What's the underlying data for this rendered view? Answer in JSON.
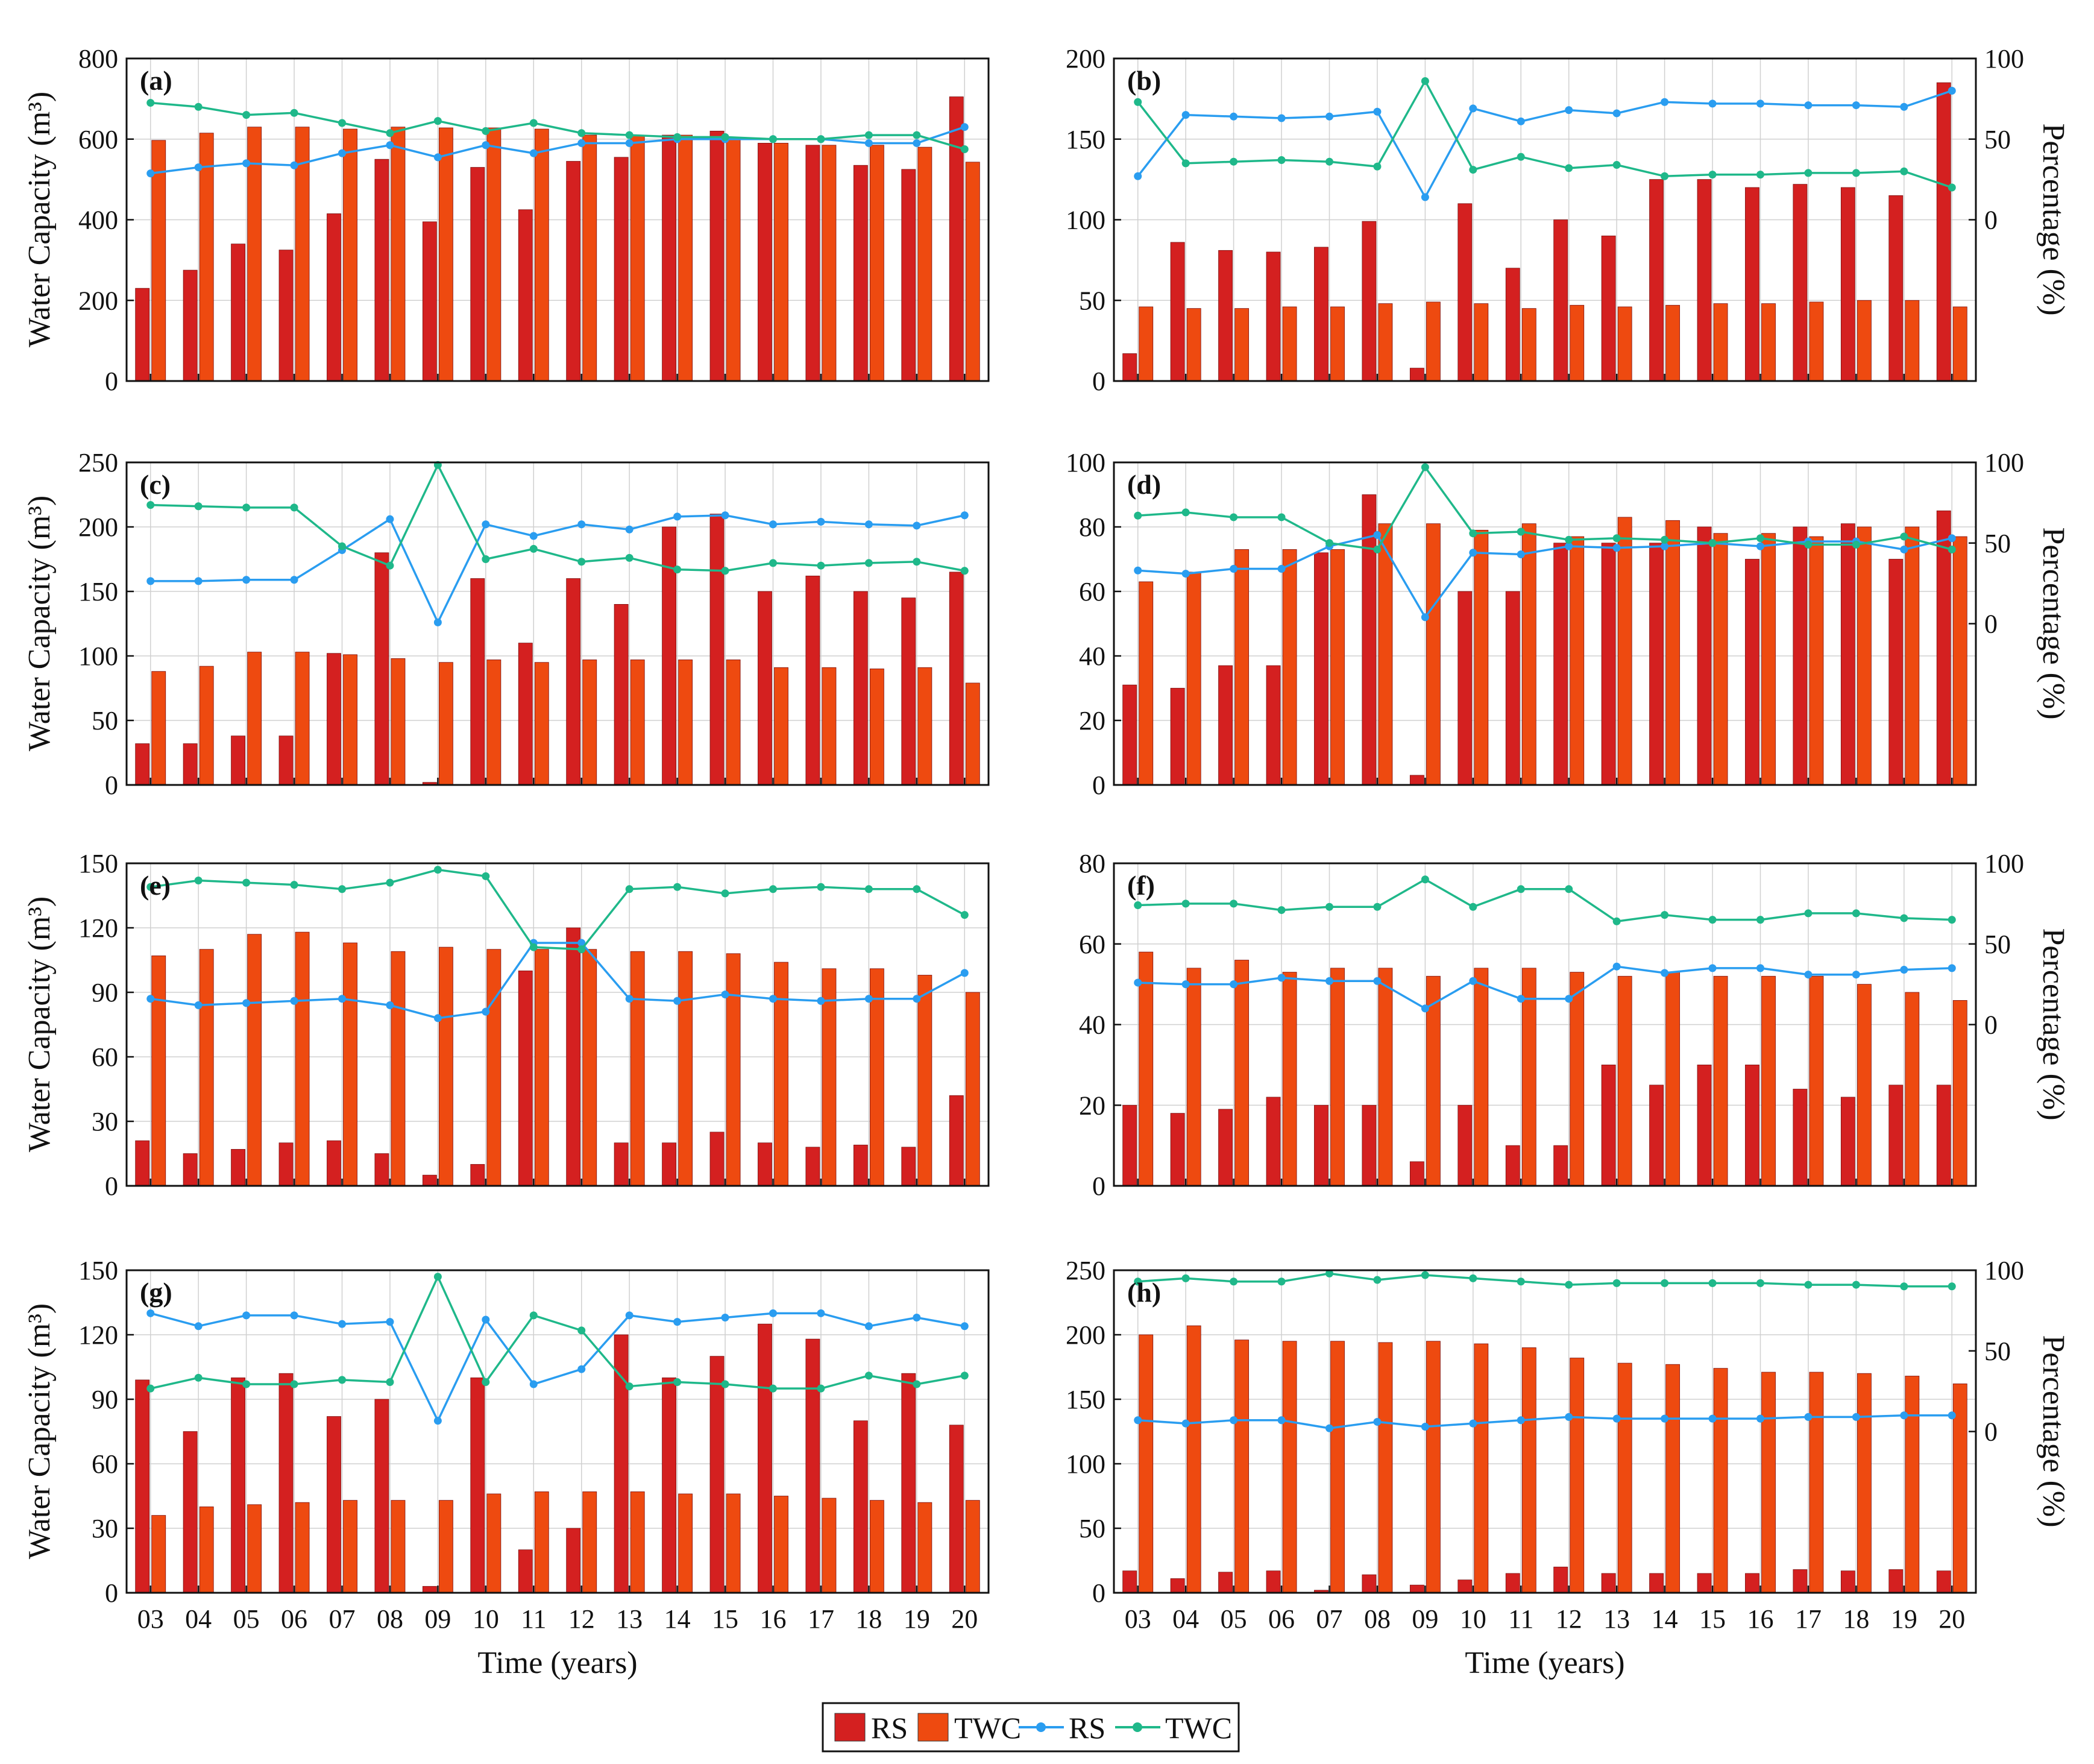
{
  "colors": {
    "rs_bar": "#d42020",
    "twc_bar": "#ee4a10",
    "rs_line": "#2a9df0",
    "twc_line": "#1fb88a",
    "grid": "#d0d0d0",
    "axis": "#111111"
  },
  "shared": {
    "xlabel": "Time (years)",
    "ylabel_left": "Water Capacity (m³)",
    "ylabel_right": "Percentage (%)",
    "x_ticks": [
      "03",
      "04",
      "05",
      "06",
      "07",
      "08",
      "09",
      "10",
      "11",
      "12",
      "13",
      "14",
      "15",
      "16",
      "17",
      "18",
      "19",
      "20"
    ]
  },
  "legend": {
    "items": [
      {
        "label": "RS",
        "kind": "bar",
        "color": "#d42020"
      },
      {
        "label": "TWC",
        "kind": "bar",
        "color": "#ee4a10"
      },
      {
        "label": "RS",
        "kind": "line",
        "color": "#2a9df0"
      },
      {
        "label": "TWC",
        "kind": "line",
        "color": "#1fb88a"
      }
    ]
  },
  "chart_data": [
    {
      "panel": "(a)",
      "type": "bar",
      "categories": [
        "03",
        "04",
        "05",
        "06",
        "07",
        "08",
        "09",
        "10",
        "11",
        "12",
        "13",
        "14",
        "15",
        "16",
        "17",
        "18",
        "19",
        "20"
      ],
      "ylim": [
        0,
        800
      ],
      "yticks": [
        0,
        200,
        400,
        600,
        800
      ],
      "right_axis": false,
      "series": [
        {
          "name": "RS",
          "kind": "bar",
          "values": [
            230,
            275,
            340,
            325,
            415,
            550,
            395,
            530,
            425,
            545,
            555,
            610,
            620,
            590,
            585,
            535,
            525,
            705
          ]
        },
        {
          "name": "TWC",
          "kind": "bar",
          "values": [
            597,
            615,
            630,
            630,
            625,
            630,
            628,
            628,
            625,
            610,
            610,
            610,
            605,
            590,
            585,
            585,
            580,
            543
          ]
        },
        {
          "name": "RS",
          "kind": "line",
          "values": [
            515,
            530,
            540,
            535,
            565,
            585,
            555,
            585,
            565,
            590,
            590,
            600,
            600,
            600,
            600,
            590,
            590,
            630
          ]
        },
        {
          "name": "TWC",
          "kind": "line",
          "values": [
            690,
            680,
            660,
            665,
            640,
            615,
            645,
            620,
            640,
            615,
            610,
            605,
            605,
            600,
            600,
            610,
            610,
            575
          ]
        }
      ]
    },
    {
      "panel": "(b)",
      "type": "bar",
      "categories": [
        "03",
        "04",
        "05",
        "06",
        "07",
        "08",
        "09",
        "10",
        "11",
        "12",
        "13",
        "14",
        "15",
        "16",
        "17",
        "18",
        "19",
        "20"
      ],
      "ylim": [
        0,
        200
      ],
      "yticks": [
        0,
        50,
        100,
        150,
        200
      ],
      "right_axis": true,
      "right_ylim": [
        -100,
        100
      ],
      "right_yticks": [
        0,
        50,
        100
      ],
      "series": [
        {
          "name": "RS",
          "kind": "bar",
          "values": [
            17,
            86,
            81,
            80,
            83,
            99,
            8,
            110,
            70,
            100,
            90,
            125,
            125,
            120,
            122,
            120,
            115,
            185
          ]
        },
        {
          "name": "TWC",
          "kind": "bar",
          "values": [
            46,
            45,
            45,
            46,
            46,
            48,
            49,
            48,
            45,
            47,
            46,
            47,
            48,
            48,
            49,
            50,
            50,
            46
          ]
        },
        {
          "name": "RS",
          "kind": "line",
          "values": [
            27,
            65,
            64,
            63,
            64,
            67,
            14,
            69,
            61,
            68,
            66,
            73,
            72,
            72,
            71,
            71,
            70,
            80
          ]
        },
        {
          "name": "TWC",
          "kind": "line",
          "values": [
            73,
            35,
            36,
            37,
            36,
            33,
            86,
            31,
            39,
            32,
            34,
            27,
            28,
            28,
            29,
            29,
            30,
            20
          ]
        }
      ]
    },
    {
      "panel": "(c)",
      "type": "bar",
      "categories": [
        "03",
        "04",
        "05",
        "06",
        "07",
        "08",
        "09",
        "10",
        "11",
        "12",
        "13",
        "14",
        "15",
        "16",
        "17",
        "18",
        "19",
        "20"
      ],
      "ylim": [
        0,
        250
      ],
      "yticks": [
        0,
        50,
        100,
        150,
        200,
        250
      ],
      "right_axis": false,
      "series": [
        {
          "name": "RS",
          "kind": "bar",
          "values": [
            32,
            32,
            38,
            38,
            102,
            180,
            2,
            160,
            110,
            160,
            140,
            200,
            210,
            150,
            162,
            150,
            145,
            165
          ]
        },
        {
          "name": "TWC",
          "kind": "bar",
          "values": [
            88,
            92,
            103,
            103,
            101,
            98,
            95,
            97,
            95,
            97,
            97,
            97,
            97,
            91,
            91,
            90,
            91,
            79
          ]
        },
        {
          "name": "RS",
          "kind": "line",
          "values": [
            158,
            158,
            159,
            159,
            182,
            206,
            126,
            202,
            193,
            202,
            198,
            208,
            209,
            202,
            204,
            202,
            201,
            209
          ]
        },
        {
          "name": "TWC",
          "kind": "line",
          "values": [
            217,
            216,
            215,
            215,
            185,
            170,
            248,
            175,
            183,
            173,
            176,
            167,
            166,
            172,
            170,
            172,
            173,
            166
          ]
        }
      ]
    },
    {
      "panel": "(d)",
      "type": "bar",
      "categories": [
        "03",
        "04",
        "05",
        "06",
        "07",
        "08",
        "09",
        "10",
        "11",
        "12",
        "13",
        "14",
        "15",
        "16",
        "17",
        "18",
        "19",
        "20"
      ],
      "ylim": [
        0,
        100
      ],
      "yticks": [
        0,
        20,
        40,
        60,
        80,
        100
      ],
      "right_axis": true,
      "right_ylim": [
        -100,
        100
      ],
      "right_yticks": [
        0,
        50,
        100
      ],
      "series": [
        {
          "name": "RS",
          "kind": "bar",
          "values": [
            31,
            30,
            37,
            37,
            72,
            90,
            3,
            60,
            60,
            75,
            75,
            75,
            80,
            70,
            80,
            81,
            70,
            85
          ]
        },
        {
          "name": "TWC",
          "kind": "bar",
          "values": [
            63,
            66,
            73,
            73,
            73,
            81,
            81,
            79,
            81,
            77,
            83,
            82,
            78,
            78,
            77,
            80,
            80,
            77
          ]
        },
        {
          "name": "RS",
          "kind": "line",
          "values": [
            33,
            31,
            34,
            34,
            48,
            55,
            4,
            44,
            43,
            48,
            47,
            48,
            50,
            48,
            51,
            51,
            46,
            53
          ]
        },
        {
          "name": "TWC",
          "kind": "line",
          "values": [
            67,
            69,
            66,
            66,
            50,
            46,
            97,
            56,
            57,
            52,
            53,
            52,
            50,
            53,
            49,
            49,
            54,
            46
          ]
        }
      ]
    },
    {
      "panel": "(e)",
      "type": "bar",
      "categories": [
        "03",
        "04",
        "05",
        "06",
        "07",
        "08",
        "09",
        "10",
        "11",
        "12",
        "13",
        "14",
        "15",
        "16",
        "17",
        "18",
        "19",
        "20"
      ],
      "ylim": [
        0,
        150
      ],
      "yticks": [
        0,
        30,
        60,
        90,
        120,
        150
      ],
      "right_axis": false,
      "series": [
        {
          "name": "RS",
          "kind": "bar",
          "values": [
            21,
            15,
            17,
            20,
            21,
            15,
            5,
            10,
            100,
            120,
            20,
            20,
            25,
            20,
            18,
            19,
            18,
            42
          ]
        },
        {
          "name": "TWC",
          "kind": "bar",
          "values": [
            107,
            110,
            117,
            118,
            113,
            109,
            111,
            110,
            110,
            110,
            109,
            109,
            108,
            104,
            101,
            101,
            98,
            90
          ]
        },
        {
          "name": "RS",
          "kind": "line",
          "values": [
            87,
            84,
            85,
            86,
            87,
            84,
            78,
            81,
            113,
            113,
            87,
            86,
            89,
            87,
            86,
            87,
            87,
            99
          ]
        },
        {
          "name": "TWC",
          "kind": "line",
          "values": [
            139,
            142,
            141,
            140,
            138,
            141,
            147,
            144,
            111,
            110,
            138,
            139,
            136,
            138,
            139,
            138,
            138,
            126
          ]
        }
      ]
    },
    {
      "panel": "(f)",
      "type": "bar",
      "categories": [
        "03",
        "04",
        "05",
        "06",
        "07",
        "08",
        "09",
        "10",
        "11",
        "12",
        "13",
        "14",
        "15",
        "16",
        "17",
        "18",
        "19",
        "20"
      ],
      "ylim": [
        0,
        80
      ],
      "yticks": [
        0,
        20,
        40,
        60,
        80
      ],
      "right_axis": true,
      "right_ylim": [
        -100,
        100
      ],
      "right_yticks": [
        0,
        50,
        100
      ],
      "series": [
        {
          "name": "RS",
          "kind": "bar",
          "values": [
            20,
            18,
            19,
            22,
            20,
            20,
            6,
            20,
            10,
            10,
            30,
            25,
            30,
            30,
            24,
            22,
            25,
            25
          ]
        },
        {
          "name": "TWC",
          "kind": "bar",
          "values": [
            58,
            54,
            56,
            53,
            54,
            54,
            52,
            54,
            54,
            53,
            52,
            53,
            52,
            52,
            52,
            50,
            48,
            46
          ]
        },
        {
          "name": "RS",
          "kind": "line",
          "values": [
            26,
            25,
            25,
            29,
            27,
            27,
            10,
            27,
            16,
            16,
            36,
            32,
            35,
            35,
            31,
            31,
            34,
            35
          ]
        },
        {
          "name": "TWC",
          "kind": "line",
          "values": [
            74,
            75,
            75,
            71,
            73,
            73,
            90,
            73,
            84,
            84,
            64,
            68,
            65,
            65,
            69,
            69,
            66,
            65
          ]
        }
      ]
    },
    {
      "panel": "(g)",
      "type": "bar",
      "categories": [
        "03",
        "04",
        "05",
        "06",
        "07",
        "08",
        "09",
        "10",
        "11",
        "12",
        "13",
        "14",
        "15",
        "16",
        "17",
        "18",
        "19",
        "20"
      ],
      "ylim": [
        0,
        150
      ],
      "yticks": [
        0,
        30,
        60,
        90,
        120,
        150
      ],
      "right_axis": false,
      "series": [
        {
          "name": "RS",
          "kind": "bar",
          "values": [
            99,
            75,
            100,
            102,
            82,
            90,
            3,
            100,
            20,
            30,
            120,
            100,
            110,
            125,
            118,
            80,
            102,
            78
          ]
        },
        {
          "name": "TWC",
          "kind": "bar",
          "values": [
            36,
            40,
            41,
            42,
            43,
            43,
            43,
            46,
            47,
            47,
            47,
            46,
            46,
            45,
            44,
            43,
            42,
            43
          ]
        },
        {
          "name": "RS",
          "kind": "line",
          "values": [
            130,
            124,
            129,
            129,
            125,
            126,
            80,
            127,
            97,
            104,
            129,
            126,
            128,
            130,
            130,
            124,
            128,
            124
          ]
        },
        {
          "name": "TWC",
          "kind": "line",
          "values": [
            95,
            100,
            97,
            97,
            99,
            98,
            147,
            98,
            129,
            122,
            96,
            98,
            97,
            95,
            95,
            101,
            97,
            101
          ]
        }
      ]
    },
    {
      "panel": "(h)",
      "type": "bar",
      "categories": [
        "03",
        "04",
        "05",
        "06",
        "07",
        "08",
        "09",
        "10",
        "11",
        "12",
        "13",
        "14",
        "15",
        "16",
        "17",
        "18",
        "19",
        "20"
      ],
      "ylim": [
        0,
        250
      ],
      "yticks": [
        0,
        50,
        100,
        150,
        200,
        250
      ],
      "right_axis": true,
      "right_ylim": [
        -100,
        100
      ],
      "right_yticks": [
        0,
        50,
        100
      ],
      "series": [
        {
          "name": "RS",
          "kind": "bar",
          "values": [
            17,
            11,
            16,
            17,
            2,
            14,
            6,
            10,
            15,
            20,
            15,
            15,
            15,
            15,
            18,
            17,
            18,
            17
          ]
        },
        {
          "name": "TWC",
          "kind": "bar",
          "values": [
            200,
            207,
            196,
            195,
            195,
            194,
            195,
            193,
            190,
            182,
            178,
            177,
            174,
            171,
            171,
            170,
            168,
            162
          ]
        },
        {
          "name": "RS",
          "kind": "line",
          "values": [
            7,
            5,
            7,
            7,
            2,
            6,
            3,
            5,
            7,
            9,
            8,
            8,
            8,
            8,
            9,
            9,
            10,
            10
          ]
        },
        {
          "name": "TWC",
          "kind": "line",
          "values": [
            93,
            95,
            93,
            93,
            98,
            94,
            97,
            95,
            93,
            91,
            92,
            92,
            92,
            92,
            91,
            91,
            90,
            90
          ]
        }
      ]
    }
  ]
}
